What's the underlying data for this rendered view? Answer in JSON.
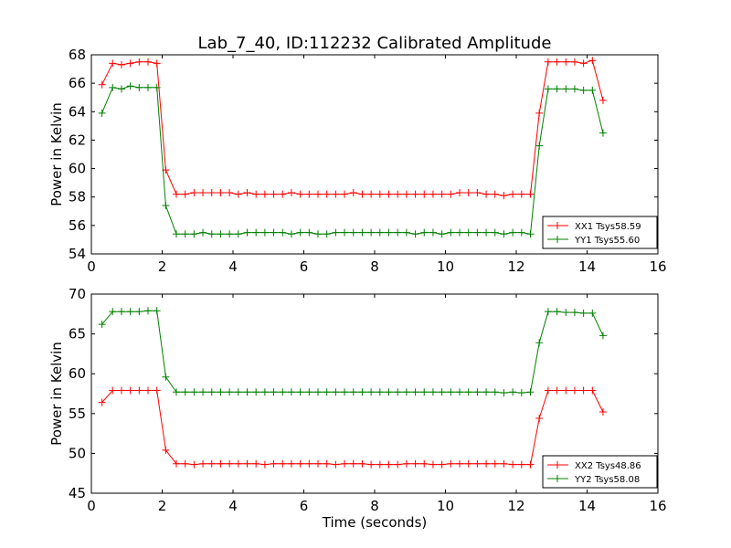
{
  "figure": {
    "title": "Lab_7_40, ID:112232 Calibrated Amplitude"
  },
  "chart_data": [
    {
      "type": "line",
      "title": "Lab_7_40, ID:112232 Calibrated Amplitude",
      "xlabel": "",
      "ylabel": "Power in Kelvin",
      "xlim": [
        0,
        16
      ],
      "ylim": [
        54,
        68
      ],
      "xticks": [
        0,
        2,
        4,
        6,
        8,
        10,
        12,
        14,
        16
      ],
      "yticks": [
        54,
        56,
        58,
        60,
        62,
        64,
        66,
        68
      ],
      "grid": false,
      "legend_position": "lower-right",
      "series": [
        {
          "name": "XX1 Tsys58.59",
          "color": "#ff0000",
          "marker": "plus",
          "x": [
            0.3,
            0.6,
            0.85,
            1.1,
            1.35,
            1.6,
            1.85,
            2.1,
            2.4,
            2.65,
            2.9,
            3.15,
            3.4,
            3.65,
            3.9,
            4.15,
            4.4,
            4.65,
            4.9,
            5.15,
            5.4,
            5.65,
            5.9,
            6.15,
            6.4,
            6.65,
            6.9,
            7.15,
            7.4,
            7.65,
            7.9,
            8.15,
            8.4,
            8.65,
            8.9,
            9.15,
            9.4,
            9.65,
            9.9,
            10.15,
            10.4,
            10.65,
            10.9,
            11.15,
            11.4,
            11.65,
            11.9,
            12.15,
            12.4,
            12.65,
            12.9,
            13.15,
            13.4,
            13.65,
            13.9,
            14.15,
            14.45
          ],
          "y": [
            65.9,
            67.4,
            67.3,
            67.4,
            67.5,
            67.5,
            67.4,
            59.9,
            58.2,
            58.2,
            58.3,
            58.3,
            58.3,
            58.3,
            58.3,
            58.2,
            58.3,
            58.2,
            58.2,
            58.2,
            58.2,
            58.3,
            58.2,
            58.2,
            58.2,
            58.2,
            58.2,
            58.2,
            58.3,
            58.2,
            58.2,
            58.2,
            58.2,
            58.2,
            58.2,
            58.2,
            58.2,
            58.2,
            58.2,
            58.2,
            58.3,
            58.3,
            58.3,
            58.2,
            58.2,
            58.1,
            58.2,
            58.2,
            58.2,
            63.9,
            67.5,
            67.5,
            67.5,
            67.5,
            67.4,
            67.6,
            64.8
          ]
        },
        {
          "name": "YY1 Tsys55.60",
          "color": "#008000",
          "marker": "plus",
          "x": [
            0.3,
            0.6,
            0.85,
            1.1,
            1.35,
            1.6,
            1.85,
            2.1,
            2.4,
            2.65,
            2.9,
            3.15,
            3.4,
            3.65,
            3.9,
            4.15,
            4.4,
            4.65,
            4.9,
            5.15,
            5.4,
            5.65,
            5.9,
            6.15,
            6.4,
            6.65,
            6.9,
            7.15,
            7.4,
            7.65,
            7.9,
            8.15,
            8.4,
            8.65,
            8.9,
            9.15,
            9.4,
            9.65,
            9.9,
            10.15,
            10.4,
            10.65,
            10.9,
            11.15,
            11.4,
            11.65,
            11.9,
            12.15,
            12.4,
            12.65,
            12.9,
            13.15,
            13.4,
            13.65,
            13.9,
            14.15,
            14.45
          ],
          "y": [
            63.9,
            65.7,
            65.6,
            65.8,
            65.7,
            65.7,
            65.7,
            57.4,
            55.4,
            55.4,
            55.4,
            55.5,
            55.4,
            55.4,
            55.4,
            55.4,
            55.5,
            55.5,
            55.5,
            55.5,
            55.5,
            55.4,
            55.5,
            55.5,
            55.4,
            55.4,
            55.5,
            55.5,
            55.5,
            55.5,
            55.5,
            55.5,
            55.5,
            55.5,
            55.5,
            55.4,
            55.5,
            55.5,
            55.4,
            55.5,
            55.5,
            55.5,
            55.5,
            55.5,
            55.5,
            55.4,
            55.5,
            55.5,
            55.4,
            61.6,
            65.6,
            65.6,
            65.6,
            65.6,
            65.5,
            65.5,
            62.5
          ]
        }
      ]
    },
    {
      "type": "line",
      "title": "",
      "xlabel": "Time (seconds)",
      "ylabel": "Power in Kelvin",
      "xlim": [
        0,
        16
      ],
      "ylim": [
        45,
        70
      ],
      "xticks": [
        0,
        2,
        4,
        6,
        8,
        10,
        12,
        14,
        16
      ],
      "yticks": [
        45,
        50,
        55,
        60,
        65,
        70
      ],
      "grid": false,
      "legend_position": "lower-right",
      "series": [
        {
          "name": "XX2 Tsys48.86",
          "color": "#ff0000",
          "marker": "plus",
          "x": [
            0.3,
            0.6,
            0.85,
            1.1,
            1.35,
            1.6,
            1.85,
            2.1,
            2.4,
            2.65,
            2.9,
            3.15,
            3.4,
            3.65,
            3.9,
            4.15,
            4.4,
            4.65,
            4.9,
            5.15,
            5.4,
            5.65,
            5.9,
            6.15,
            6.4,
            6.65,
            6.9,
            7.15,
            7.4,
            7.65,
            7.9,
            8.15,
            8.4,
            8.65,
            8.9,
            9.15,
            9.4,
            9.65,
            9.9,
            10.15,
            10.4,
            10.65,
            10.9,
            11.15,
            11.4,
            11.65,
            11.9,
            12.15,
            12.4,
            12.65,
            12.9,
            13.15,
            13.4,
            13.65,
            13.9,
            14.15,
            14.45
          ],
          "y": [
            56.4,
            57.9,
            57.9,
            57.9,
            57.9,
            57.9,
            57.9,
            50.4,
            48.7,
            48.7,
            48.6,
            48.7,
            48.7,
            48.7,
            48.7,
            48.7,
            48.7,
            48.7,
            48.6,
            48.7,
            48.7,
            48.7,
            48.7,
            48.7,
            48.7,
            48.7,
            48.6,
            48.7,
            48.7,
            48.7,
            48.6,
            48.6,
            48.6,
            48.6,
            48.7,
            48.7,
            48.7,
            48.6,
            48.6,
            48.7,
            48.7,
            48.7,
            48.7,
            48.7,
            48.7,
            48.7,
            48.6,
            48.6,
            48.6,
            54.4,
            57.9,
            57.9,
            57.9,
            57.9,
            57.9,
            57.9,
            55.2
          ]
        },
        {
          "name": "YY2 Tsys58.08",
          "color": "#008000",
          "marker": "plus",
          "x": [
            0.3,
            0.6,
            0.85,
            1.1,
            1.35,
            1.6,
            1.85,
            2.1,
            2.4,
            2.65,
            2.9,
            3.15,
            3.4,
            3.65,
            3.9,
            4.15,
            4.4,
            4.65,
            4.9,
            5.15,
            5.4,
            5.65,
            5.9,
            6.15,
            6.4,
            6.65,
            6.9,
            7.15,
            7.4,
            7.65,
            7.9,
            8.15,
            8.4,
            8.65,
            8.9,
            9.15,
            9.4,
            9.65,
            9.9,
            10.15,
            10.4,
            10.65,
            10.9,
            11.15,
            11.4,
            11.65,
            11.9,
            12.15,
            12.4,
            12.65,
            12.9,
            13.15,
            13.4,
            13.65,
            13.9,
            14.15,
            14.45
          ],
          "y": [
            66.2,
            67.8,
            67.8,
            67.8,
            67.8,
            67.9,
            67.9,
            59.6,
            57.7,
            57.7,
            57.7,
            57.7,
            57.7,
            57.7,
            57.7,
            57.7,
            57.7,
            57.7,
            57.7,
            57.7,
            57.7,
            57.7,
            57.7,
            57.7,
            57.7,
            57.7,
            57.7,
            57.7,
            57.7,
            57.7,
            57.7,
            57.7,
            57.7,
            57.7,
            57.7,
            57.7,
            57.7,
            57.7,
            57.7,
            57.7,
            57.7,
            57.7,
            57.7,
            57.7,
            57.7,
            57.6,
            57.7,
            57.6,
            57.7,
            63.9,
            67.8,
            67.8,
            67.7,
            67.7,
            67.6,
            67.6,
            64.8
          ]
        }
      ]
    }
  ]
}
